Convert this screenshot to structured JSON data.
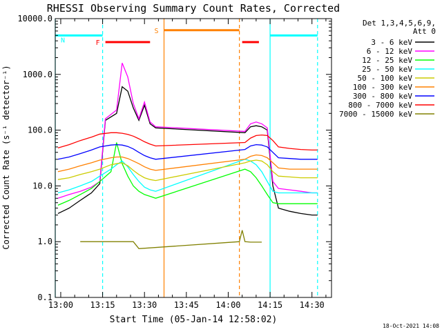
{
  "chart_data": {
    "type": "line",
    "title": "RHESSI Observing Summary Count Rates, Corrected",
    "xlabel": "Start Time (05-Jan-14 12:58:02)",
    "ylabel": "Corrected Count Rate (s⁻¹ detector⁻¹)",
    "x_unit": "UT time (HH:MM)",
    "xlim": [
      "12:58:02",
      "14:37:00"
    ],
    "x_ticks": [
      "13:00",
      "13:15",
      "13:30",
      "13:45",
      "14:00",
      "14:15",
      "14:30"
    ],
    "y_scale": "log",
    "ylim": [
      0.1,
      10000
    ],
    "y_ticks": [
      "0.1",
      "1.0",
      "10.0",
      "100.0",
      "1000.0",
      "10000.0"
    ],
    "grid": false,
    "legend_position": "top-right (outside plot)",
    "legend_header": [
      "Det 1,3,4,5,6,9,",
      "Att 0"
    ],
    "footer_timestamp": "18-Oct-2021 14:08",
    "series": [
      {
        "name": "3 - 6 keV",
        "color": "#000000",
        "x": [
          "12:59",
          "13:03",
          "13:07",
          "13:11",
          "13:14",
          "13:16",
          "13:20",
          "13:22",
          "13:24",
          "13:26",
          "13:28",
          "13:30",
          "13:32",
          "13:34",
          "14:06",
          "14:08",
          "14:10",
          "14:12",
          "14:14",
          "14:16",
          "14:18",
          "14:22",
          "14:26",
          "14:30",
          "14:32"
        ],
        "y": [
          3.2,
          4,
          5.5,
          7.5,
          11,
          150,
          200,
          600,
          500,
          250,
          150,
          280,
          130,
          110,
          90,
          115,
          120,
          115,
          100,
          10,
          4,
          3.5,
          3.2,
          3,
          3
        ]
      },
      {
        "name": "6 - 12 keV",
        "color": "#ff00ff",
        "x": [
          "12:59",
          "13:03",
          "13:07",
          "13:11",
          "13:14",
          "13:16",
          "13:20",
          "13:22",
          "13:24",
          "13:26",
          "13:28",
          "13:30",
          "13:32",
          "13:34",
          "14:06",
          "14:08",
          "14:10",
          "14:12",
          "14:14",
          "14:16",
          "14:18",
          "14:22",
          "14:26",
          "14:30",
          "14:32"
        ],
        "y": [
          6,
          7,
          8,
          9.5,
          12,
          160,
          230,
          1600,
          900,
          300,
          160,
          320,
          140,
          115,
          95,
          130,
          140,
          130,
          110,
          12,
          9,
          8.5,
          8,
          7.5,
          7.5
        ]
      },
      {
        "name": "12 - 25 keV",
        "color": "#00ff00",
        "x": [
          "12:59",
          "13:03",
          "13:07",
          "13:11",
          "13:14",
          "13:18",
          "13:20",
          "13:22",
          "13:24",
          "13:26",
          "13:28",
          "13:30",
          "13:32",
          "13:34",
          "14:06",
          "14:08",
          "14:10",
          "14:12",
          "14:14",
          "14:16",
          "14:18",
          "14:22",
          "14:26",
          "14:30",
          "14:32"
        ],
        "y": [
          4.5,
          5.5,
          7,
          9,
          12,
          18,
          60,
          25,
          15,
          10,
          8,
          7,
          6.5,
          6,
          20,
          18,
          14,
          10,
          7,
          5,
          4.8,
          4.8,
          4.8,
          4.8,
          4.8
        ]
      },
      {
        "name": "25 - 50 keV",
        "color": "#00ffff",
        "x": [
          "12:59",
          "13:03",
          "13:07",
          "13:11",
          "13:14",
          "13:18",
          "13:20",
          "13:22",
          "13:24",
          "13:26",
          "13:28",
          "13:30",
          "13:32",
          "13:34",
          "14:06",
          "14:08",
          "14:10",
          "14:12",
          "14:14",
          "14:16",
          "14:18",
          "14:22",
          "14:26",
          "14:30",
          "14:32"
        ],
        "y": [
          7.5,
          8.5,
          10,
          12,
          15,
          20,
          24,
          28,
          22,
          16,
          12,
          9.5,
          8.5,
          8,
          30,
          28,
          24,
          18,
          12,
          8,
          7.5,
          7.5,
          7.5,
          7.5,
          7.5
        ]
      },
      {
        "name": "50 - 100 keV",
        "color": "#cccc00",
        "x": [
          "12:59",
          "13:03",
          "13:07",
          "13:11",
          "13:14",
          "13:18",
          "13:20",
          "13:22",
          "13:24",
          "13:26",
          "13:28",
          "13:30",
          "13:32",
          "13:34",
          "14:06",
          "14:08",
          "14:10",
          "14:12",
          "14:14",
          "14:16",
          "14:18",
          "14:22",
          "14:26",
          "14:30",
          "14:32"
        ],
        "y": [
          13,
          14,
          16,
          18,
          20,
          24,
          25,
          26,
          23,
          19,
          16,
          14,
          13,
          12.5,
          26,
          28,
          29,
          28,
          24,
          18,
          15,
          14.5,
          14,
          14,
          14
        ]
      },
      {
        "name": "100 - 300 keV",
        "color": "#ff8000",
        "x": [
          "12:59",
          "13:03",
          "13:07",
          "13:11",
          "13:14",
          "13:18",
          "13:20",
          "13:22",
          "13:24",
          "13:26",
          "13:28",
          "13:30",
          "13:32",
          "13:34",
          "14:06",
          "14:08",
          "14:10",
          "14:12",
          "14:14",
          "14:16",
          "14:18",
          "14:22",
          "14:26",
          "14:30",
          "14:32"
        ],
        "y": [
          18,
          20,
          23,
          26,
          29,
          32,
          33,
          33,
          31,
          28,
          25,
          22,
          20,
          19,
          30,
          34,
          36,
          35,
          32,
          26,
          21,
          20,
          20,
          20,
          20
        ]
      },
      {
        "name": "300 - 800 keV",
        "color": "#0000ff",
        "x": [
          "12:59",
          "13:03",
          "13:07",
          "13:11",
          "13:14",
          "13:18",
          "13:20",
          "13:22",
          "13:24",
          "13:26",
          "13:28",
          "13:30",
          "13:32",
          "13:34",
          "14:06",
          "14:08",
          "14:10",
          "14:12",
          "14:14",
          "14:16",
          "14:18",
          "14:22",
          "14:26",
          "14:30",
          "14:32"
        ],
        "y": [
          30,
          33,
          38,
          44,
          50,
          54,
          55,
          54,
          51,
          46,
          40,
          35,
          32,
          30,
          45,
          52,
          55,
          54,
          50,
          40,
          32,
          31,
          30,
          30,
          30
        ]
      },
      {
        "name": "800 - 7000 keV",
        "color": "#ff0000",
        "x": [
          "12:59",
          "13:03",
          "13:07",
          "13:11",
          "13:14",
          "13:18",
          "13:20",
          "13:22",
          "13:24",
          "13:26",
          "13:28",
          "13:30",
          "13:32",
          "13:34",
          "14:06",
          "14:08",
          "14:10",
          "14:12",
          "14:14",
          "14:16",
          "14:18",
          "14:22",
          "14:26",
          "14:30",
          "14:32"
        ],
        "y": [
          48,
          55,
          65,
          75,
          85,
          90,
          90,
          88,
          84,
          78,
          70,
          62,
          56,
          52,
          60,
          72,
          80,
          82,
          80,
          65,
          50,
          47,
          45,
          44,
          44
        ]
      },
      {
        "name": "7000 - 15000 keV",
        "color": "#808000",
        "x": [
          "13:07",
          "13:10",
          "13:13",
          "13:16",
          "13:19",
          "13:22",
          "13:24",
          "13:26",
          "13:28",
          "14:04",
          "14:05",
          "14:06",
          "14:08",
          "14:10",
          "14:12"
        ],
        "y": [
          1.0,
          1.0,
          1.0,
          1.0,
          1.0,
          1.0,
          1.0,
          1.0,
          0.75,
          1.0,
          1.6,
          1.0,
          0.98,
          0.98,
          0.98
        ]
      }
    ],
    "annotations": [
      {
        "label": "N",
        "kind": "night",
        "color": "#00ffff",
        "y": 5000,
        "segments": [
          [
            "12:58:02",
            "13:15"
          ],
          [
            "14:15",
            "14:32"
          ]
        ]
      },
      {
        "label": "F",
        "kind": "flare",
        "color": "#ff0000",
        "y": 3800,
        "segments": [
          [
            "13:16",
            "13:32"
          ],
          [
            "14:05",
            "14:11"
          ]
        ]
      },
      {
        "label": "S",
        "kind": "SAA",
        "color": "#ff8000",
        "y": 6200,
        "segments": [
          [
            "13:37",
            "14:04"
          ]
        ]
      }
    ],
    "vertical_lines": [
      {
        "x": "12:58:02",
        "color": "#00ffff",
        "style": "solid"
      },
      {
        "x": "13:15",
        "color": "#00ffff",
        "style": "dashed"
      },
      {
        "x": "13:37",
        "color": "#ff8000",
        "style": "solid"
      },
      {
        "x": "14:04",
        "color": "#ff8000",
        "style": "dashed"
      },
      {
        "x": "14:15",
        "color": "#00ffff",
        "style": "solid"
      },
      {
        "x": "14:32",
        "color": "#00ffff",
        "style": "dashed"
      }
    ]
  }
}
